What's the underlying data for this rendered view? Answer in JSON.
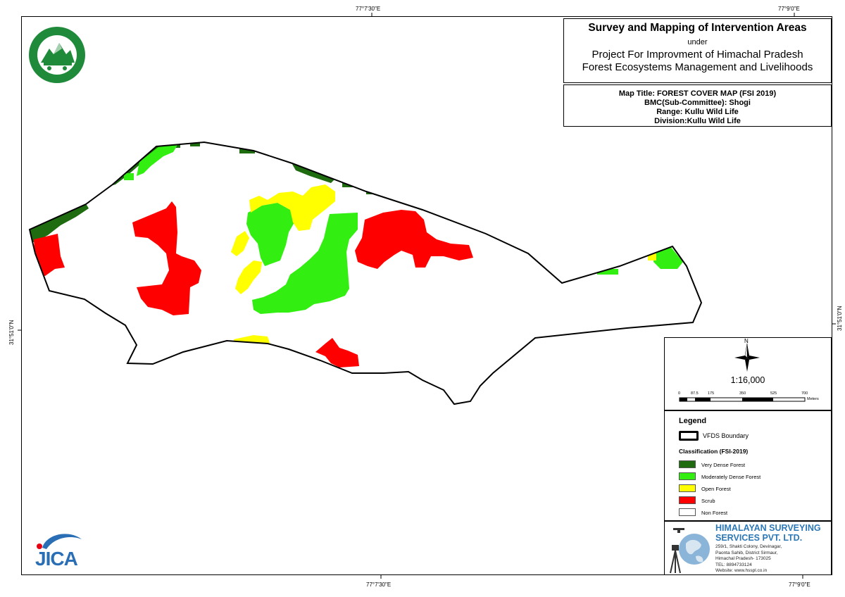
{
  "colors": {
    "very_dense_forest": "#1e6b10",
    "moderately_dense_forest": "#33ee11",
    "open_forest": "#ffff00",
    "scrub": "#ff0000",
    "non_forest": "#ffffff",
    "company_blue": "#2c78b7"
  },
  "grid": {
    "top_labels": [
      "77°7'30\"E",
      "77°9'0\"E"
    ],
    "bottom_labels": [
      "77°7'30\"E",
      "77°9'0\"E"
    ],
    "left_label": "31°51'0\"N",
    "right_label": "31°51'0\"N"
  },
  "title_block": {
    "main": "Survey and Mapping of Intervention Areas",
    "under": "under",
    "project_line1": "Project For Improvment of Himachal Pradesh",
    "project_line2": "Forest Ecosystems Management and Livelihoods"
  },
  "map_info": {
    "map_title": "Map Title:  FOREST COVER MAP (FSI 2019)",
    "bmc": "BMC(Sub-Committee): Shogi",
    "range": "Range: Kullu Wild Life",
    "division": "Division:Kullu Wild Life"
  },
  "north_arrow": {
    "label": "N",
    "icon": "north-arrow-icon"
  },
  "scale": {
    "ratio": "1:16,000",
    "ticks": [
      "0",
      "87.5",
      "175",
      "350",
      "525",
      "700"
    ],
    "unit": "Meters"
  },
  "legend": {
    "title": "Legend",
    "boundary_label": "VFDS  Boundary",
    "classification_title": "Classification (FSI-2019)",
    "items": [
      {
        "label": "Very Dense Forest",
        "color": "#1e6b10"
      },
      {
        "label": "Moderately Dense Forest",
        "color": "#33ee11"
      },
      {
        "label": "Open Forest",
        "color": "#ffff00"
      },
      {
        "label": "Scrub",
        "color": "#ff0000"
      },
      {
        "label": "Non Forest",
        "color": "#ffffff"
      }
    ]
  },
  "company": {
    "name_line1": "HIMALAYAN SURVEYING",
    "name_line2": "SERVICES PVT. LTD.",
    "address_lines": [
      "259/1, Shakti Colony, Devinagar,",
      "Paonta Sahib, District Sirmaur,",
      "Himachal Pradesh- 173025",
      "TEL: 8894733124",
      "Website: www.hsspl.co.in"
    ]
  },
  "logos": {
    "forest_department_icon": "hp-forest-department-emblem-icon",
    "jica_logo_text": "JICA"
  }
}
